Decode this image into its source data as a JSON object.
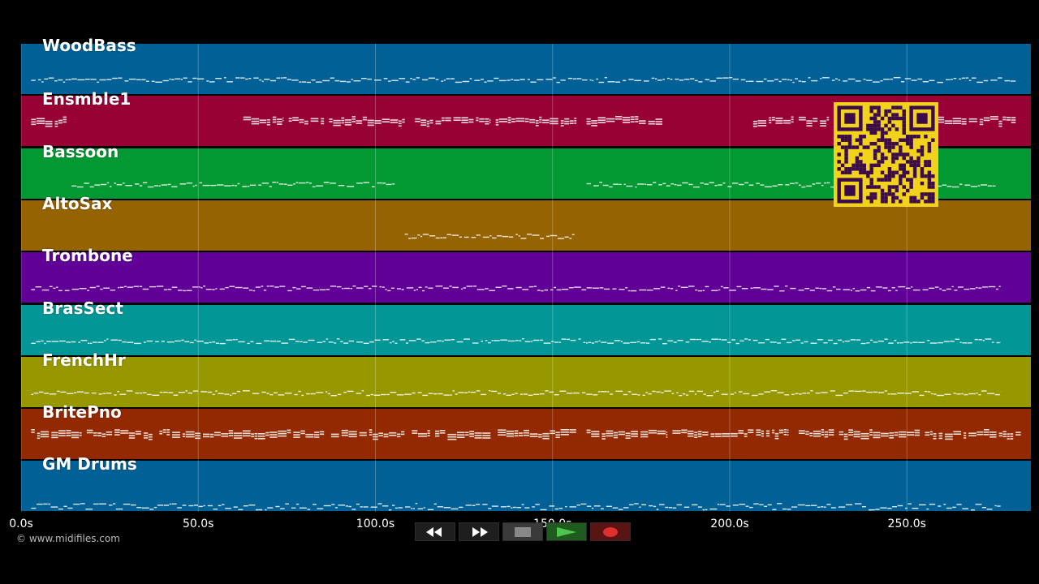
{
  "tracks": [
    {
      "name": "WoodBass",
      "color": "#016196",
      "pattern": "melody",
      "segments": [
        [
          0.01,
          0.985
        ]
      ]
    },
    {
      "name": "Ensmble1",
      "color": "#980134",
      "pattern": "chords",
      "segments": [
        [
          0.01,
          0.045
        ],
        [
          0.22,
          0.26
        ],
        [
          0.265,
          0.3
        ],
        [
          0.305,
          0.38
        ],
        [
          0.39,
          0.465
        ],
        [
          0.47,
          0.55
        ],
        [
          0.56,
          0.635
        ],
        [
          0.725,
          0.765
        ],
        [
          0.77,
          0.8
        ],
        [
          0.85,
          0.985
        ]
      ]
    },
    {
      "name": "Bassoon",
      "color": "#029932",
      "pattern": "melody",
      "segments": [
        [
          0.05,
          0.37
        ],
        [
          0.56,
          0.965
        ]
      ]
    },
    {
      "name": "AltoSax",
      "color": "#966302",
      "pattern": "melody",
      "segments": [
        [
          0.38,
          0.548
        ]
      ]
    },
    {
      "name": "Trombone",
      "color": "#600096",
      "pattern": "melody",
      "segments": [
        [
          0.01,
          0.97
        ]
      ]
    },
    {
      "name": "BrasSect",
      "color": "#039696",
      "pattern": "melody",
      "segments": [
        [
          0.01,
          0.97
        ]
      ]
    },
    {
      "name": "FrenchHr",
      "color": "#979800",
      "pattern": "melody",
      "segments": [
        [
          0.01,
          0.97
        ]
      ]
    },
    {
      "name": "BritePno",
      "color": "#932901",
      "pattern": "chords",
      "segments": [
        [
          0.01,
          0.06
        ],
        [
          0.065,
          0.13
        ],
        [
          0.137,
          0.3
        ],
        [
          0.307,
          0.38
        ],
        [
          0.387,
          0.405
        ],
        [
          0.41,
          0.465
        ],
        [
          0.472,
          0.55
        ],
        [
          0.56,
          0.64
        ],
        [
          0.645,
          0.76
        ],
        [
          0.77,
          0.805
        ],
        [
          0.81,
          0.89
        ],
        [
          0.895,
          0.99
        ]
      ]
    },
    {
      "name": "GM Drums",
      "color": "#016196",
      "pattern": "drums",
      "segments": [
        [
          0.01,
          0.97
        ]
      ]
    }
  ],
  "timeline": {
    "max_seconds": 285,
    "ticks": [
      0,
      50,
      100,
      150,
      200,
      250
    ],
    "tick_labels": [
      "0.0s",
      "50.0s",
      "100.0s",
      "150.0s",
      "200.0s",
      "250.0s"
    ]
  },
  "copyright": "© www.midifiles.com",
  "transport": {
    "rewind_icon": "rewind-icon",
    "fast_forward_icon": "fast-forward-icon",
    "stop_icon": "stop-icon",
    "play_icon": "play-icon",
    "record_icon": "record-icon",
    "colors": {
      "play": "#2f8a2f",
      "record": "#d02020",
      "stop": "#888888"
    }
  },
  "qr_code": {
    "icon": "qr-code",
    "color": "#f2d31b",
    "fg": "#3a0a4a"
  }
}
